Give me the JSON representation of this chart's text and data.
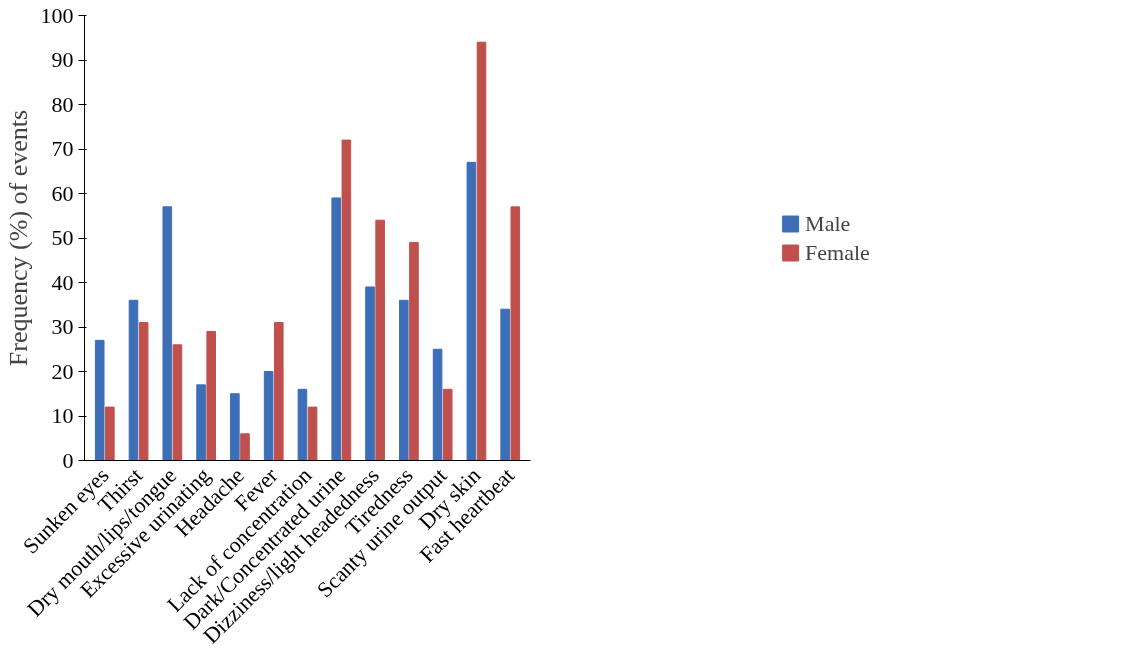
{
  "chart_data": {
    "type": "bar",
    "ylabel": "Frequency (%) of events",
    "categories": [
      "Sunken eyes",
      "Thirst",
      "Dry mouth/lips/tongue",
      "Excessive urinating",
      "Headache",
      "Fever",
      "Lack of concentration",
      "Dark/Concentrated urine",
      "Dizziness/light headedness",
      "Tiredness",
      "Scanty urine output",
      "Dry skin",
      "Fast heartbeat"
    ],
    "series": [
      {
        "name": "Male",
        "color": "#3d6fb8",
        "values": [
          27,
          36,
          57,
          17,
          15,
          20,
          16,
          59,
          39,
          36,
          25,
          67,
          34
        ]
      },
      {
        "name": "Female",
        "color": "#c0504d",
        "values": [
          12,
          31,
          26,
          29,
          6,
          31,
          12,
          72,
          54,
          49,
          16,
          94,
          57
        ]
      }
    ],
    "ylim": [
      0,
      100
    ],
    "yticks": [
      0,
      10,
      20,
      30,
      40,
      50,
      60,
      70,
      80,
      90,
      100
    ],
    "grid": false,
    "legend": "right"
  }
}
